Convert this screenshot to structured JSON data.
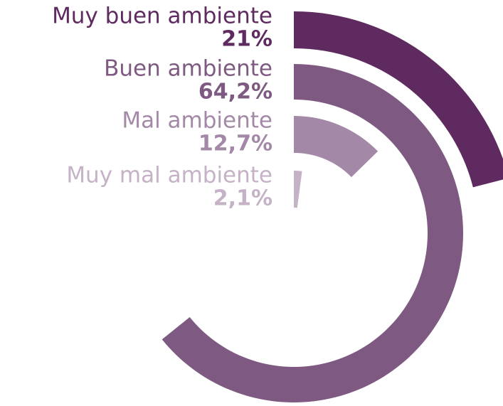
{
  "chart_data": {
    "type": "radial-bar",
    "categories": [
      "Muy buen ambiente",
      "Buen ambiente",
      "Mal ambiente",
      "Muy mal ambiente"
    ],
    "values": [
      21,
      64.2,
      12.7,
      2.1
    ],
    "value_labels": [
      "21%",
      "64,2%",
      "12,7%",
      "2,1%"
    ],
    "colors": [
      "#5e2a60",
      "#7e5981",
      "#a488a7",
      "#c5b2c7"
    ]
  }
}
